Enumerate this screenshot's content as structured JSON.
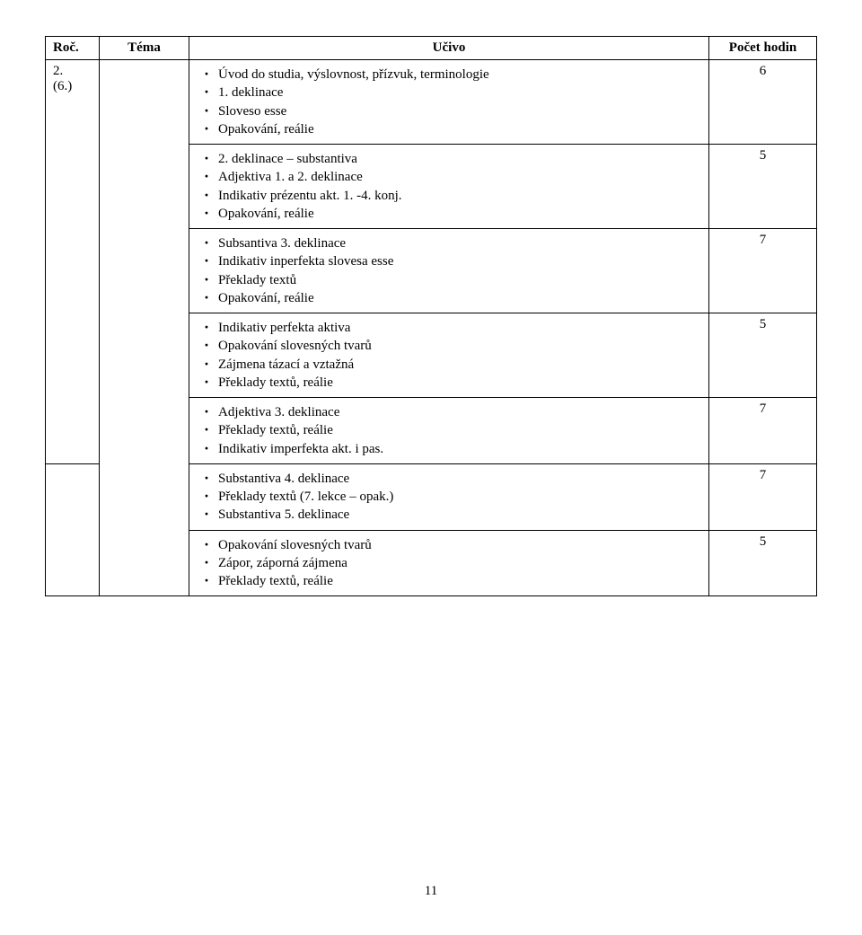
{
  "header": {
    "col1": "Roč.",
    "col2": "Téma",
    "col3": "Učivo",
    "col4": "Počet hodin"
  },
  "roc": {
    "line1": "2.",
    "line2": "(6.)"
  },
  "rows": [
    {
      "hodin": "6",
      "items": [
        "Úvod do studia, výslovnost, přízvuk, terminologie",
        "1. deklinace",
        "Sloveso esse",
        "Opakování, reálie"
      ]
    },
    {
      "hodin": "5",
      "items": [
        "2. deklinace – substantiva",
        "Adjektiva 1. a 2. deklinace",
        "Indikativ prézentu akt. 1. -4. konj.",
        "Opakování, reálie"
      ]
    },
    {
      "hodin": "7",
      "items": [
        "Subsantiva 3. deklinace",
        "Indikativ inperfekta slovesa esse",
        "Překlady textů",
        "Opakování, reálie"
      ]
    },
    {
      "hodin": "5",
      "items": [
        "Indikativ perfekta aktiva",
        "Opakování slovesných tvarů",
        "Zájmena tázací a vztažná",
        "Překlady textů, reálie"
      ]
    },
    {
      "hodin": "7",
      "items": [
        "Adjektiva 3. deklinace",
        "Překlady textů, reálie",
        "Indikativ imperfekta akt. i pas."
      ]
    },
    {
      "hodin": "7",
      "items": [
        "Substantiva 4. deklinace",
        "Překlady textů (7. lekce – opak.)",
        "Substantiva 5. deklinace"
      ]
    },
    {
      "hodin": "5",
      "items": [
        "Opakování slovesných tvarů",
        "Zápor, záporná zájmena",
        "Překlady textů, reálie"
      ]
    }
  ],
  "rocRowspan": 5,
  "temaRowspan": 7,
  "pageNumber": "11"
}
